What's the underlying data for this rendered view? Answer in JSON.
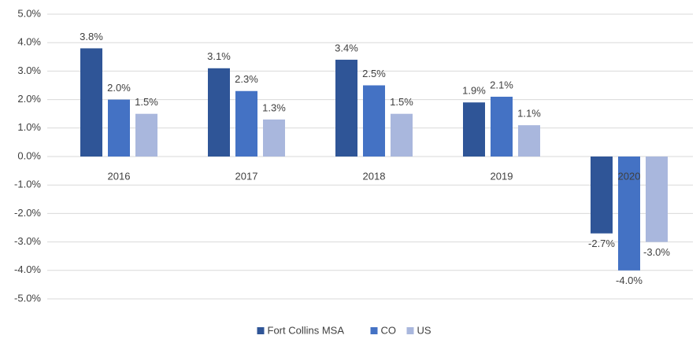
{
  "chart_data": {
    "type": "bar",
    "categories": [
      "2016",
      "2017",
      "2018",
      "2019",
      "2020"
    ],
    "series": [
      {
        "name": "Fort Collins MSA",
        "color": "#2f5597",
        "values": [
          3.8,
          3.1,
          3.4,
          1.9,
          -2.7
        ],
        "value_labels": [
          "3.8%",
          "3.1%",
          "3.4%",
          "1.9%",
          "-2.7%"
        ]
      },
      {
        "name": "CO",
        "color": "#4472c4",
        "values": [
          2.0,
          2.3,
          2.5,
          2.1,
          -4.0
        ],
        "value_labels": [
          "2.0%",
          "2.3%",
          "2.5%",
          "2.1%",
          "-4.0%"
        ]
      },
      {
        "name": "US",
        "color": "#a9b7dd",
        "values": [
          1.5,
          1.3,
          1.5,
          1.1,
          -3.0
        ],
        "value_labels": [
          "1.5%",
          "1.3%",
          "1.5%",
          "1.1%",
          "-3.0%"
        ]
      }
    ],
    "ylim": [
      -5,
      5
    ],
    "yticks": [
      {
        "value": 5,
        "label": "5.0%"
      },
      {
        "value": 4,
        "label": "4.0%"
      },
      {
        "value": 3,
        "label": "3.0%"
      },
      {
        "value": 2,
        "label": "2.0%"
      },
      {
        "value": 1,
        "label": "1.0%"
      },
      {
        "value": 0,
        "label": "0.0%"
      },
      {
        "value": -1,
        "label": "-1.0%"
      },
      {
        "value": -2,
        "label": "-2.0%"
      },
      {
        "value": -3,
        "label": "-3.0%"
      },
      {
        "value": -4,
        "label": "-4.0%"
      },
      {
        "value": -5,
        "label": "-5.0%"
      }
    ],
    "grid": true,
    "legend": "bottom"
  }
}
